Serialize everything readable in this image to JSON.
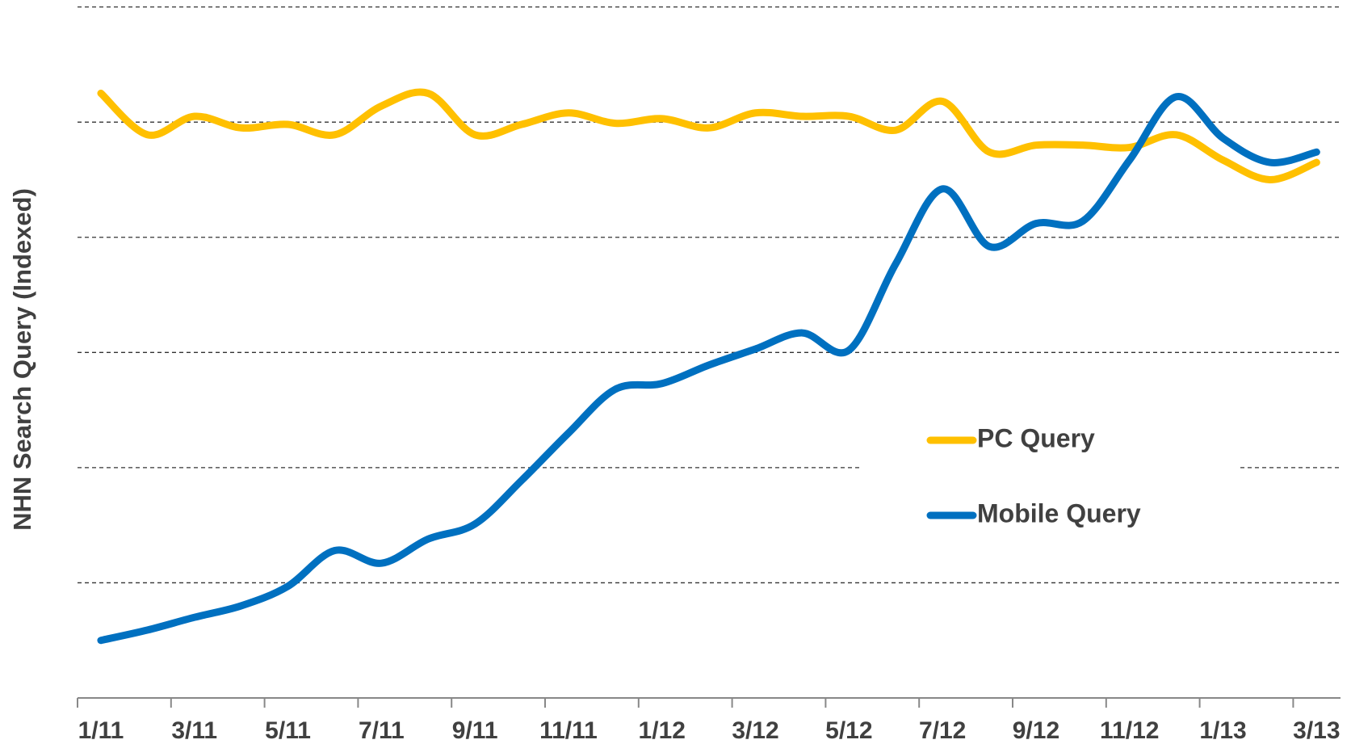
{
  "chart_data": {
    "type": "line",
    "y_label": "NHN Search Query (Indexed)",
    "categories": [
      "1/11",
      null,
      "3/11",
      null,
      "5/11",
      null,
      "7/11",
      null,
      "9/11",
      null,
      "11/11",
      null,
      "1/12",
      null,
      "3/12",
      null,
      "5/12",
      null,
      "7/12",
      null,
      "9/12",
      null,
      "11/12",
      null,
      "1/13",
      null,
      "3/13"
    ],
    "series": [
      {
        "name": "PC Query",
        "color": "#FFC000",
        "values": [
          5.25,
          4.89,
          5.05,
          4.95,
          4.98,
          4.89,
          5.14,
          5.25,
          4.89,
          4.98,
          5.08,
          4.99,
          5.03,
          4.95,
          5.08,
          5.05,
          5.05,
          4.93,
          5.18,
          4.74,
          4.8,
          4.8,
          4.78,
          4.89,
          4.67,
          4.5,
          4.65
        ]
      },
      {
        "name": "Mobile Query",
        "color": "#0070C0",
        "values": [
          0.5,
          0.59,
          0.7,
          0.8,
          0.97,
          1.28,
          1.17,
          1.38,
          1.51,
          1.89,
          2.3,
          2.68,
          2.73,
          2.89,
          3.03,
          3.17,
          3.02,
          3.77,
          4.42,
          3.92,
          4.12,
          4.14,
          4.67,
          5.22,
          4.86,
          4.65,
          4.74
        ]
      }
    ],
    "ylim": [
      0,
      6
    ],
    "yticks": [
      1,
      2,
      3,
      4,
      5,
      6
    ],
    "grid": true,
    "legend": "right"
  }
}
